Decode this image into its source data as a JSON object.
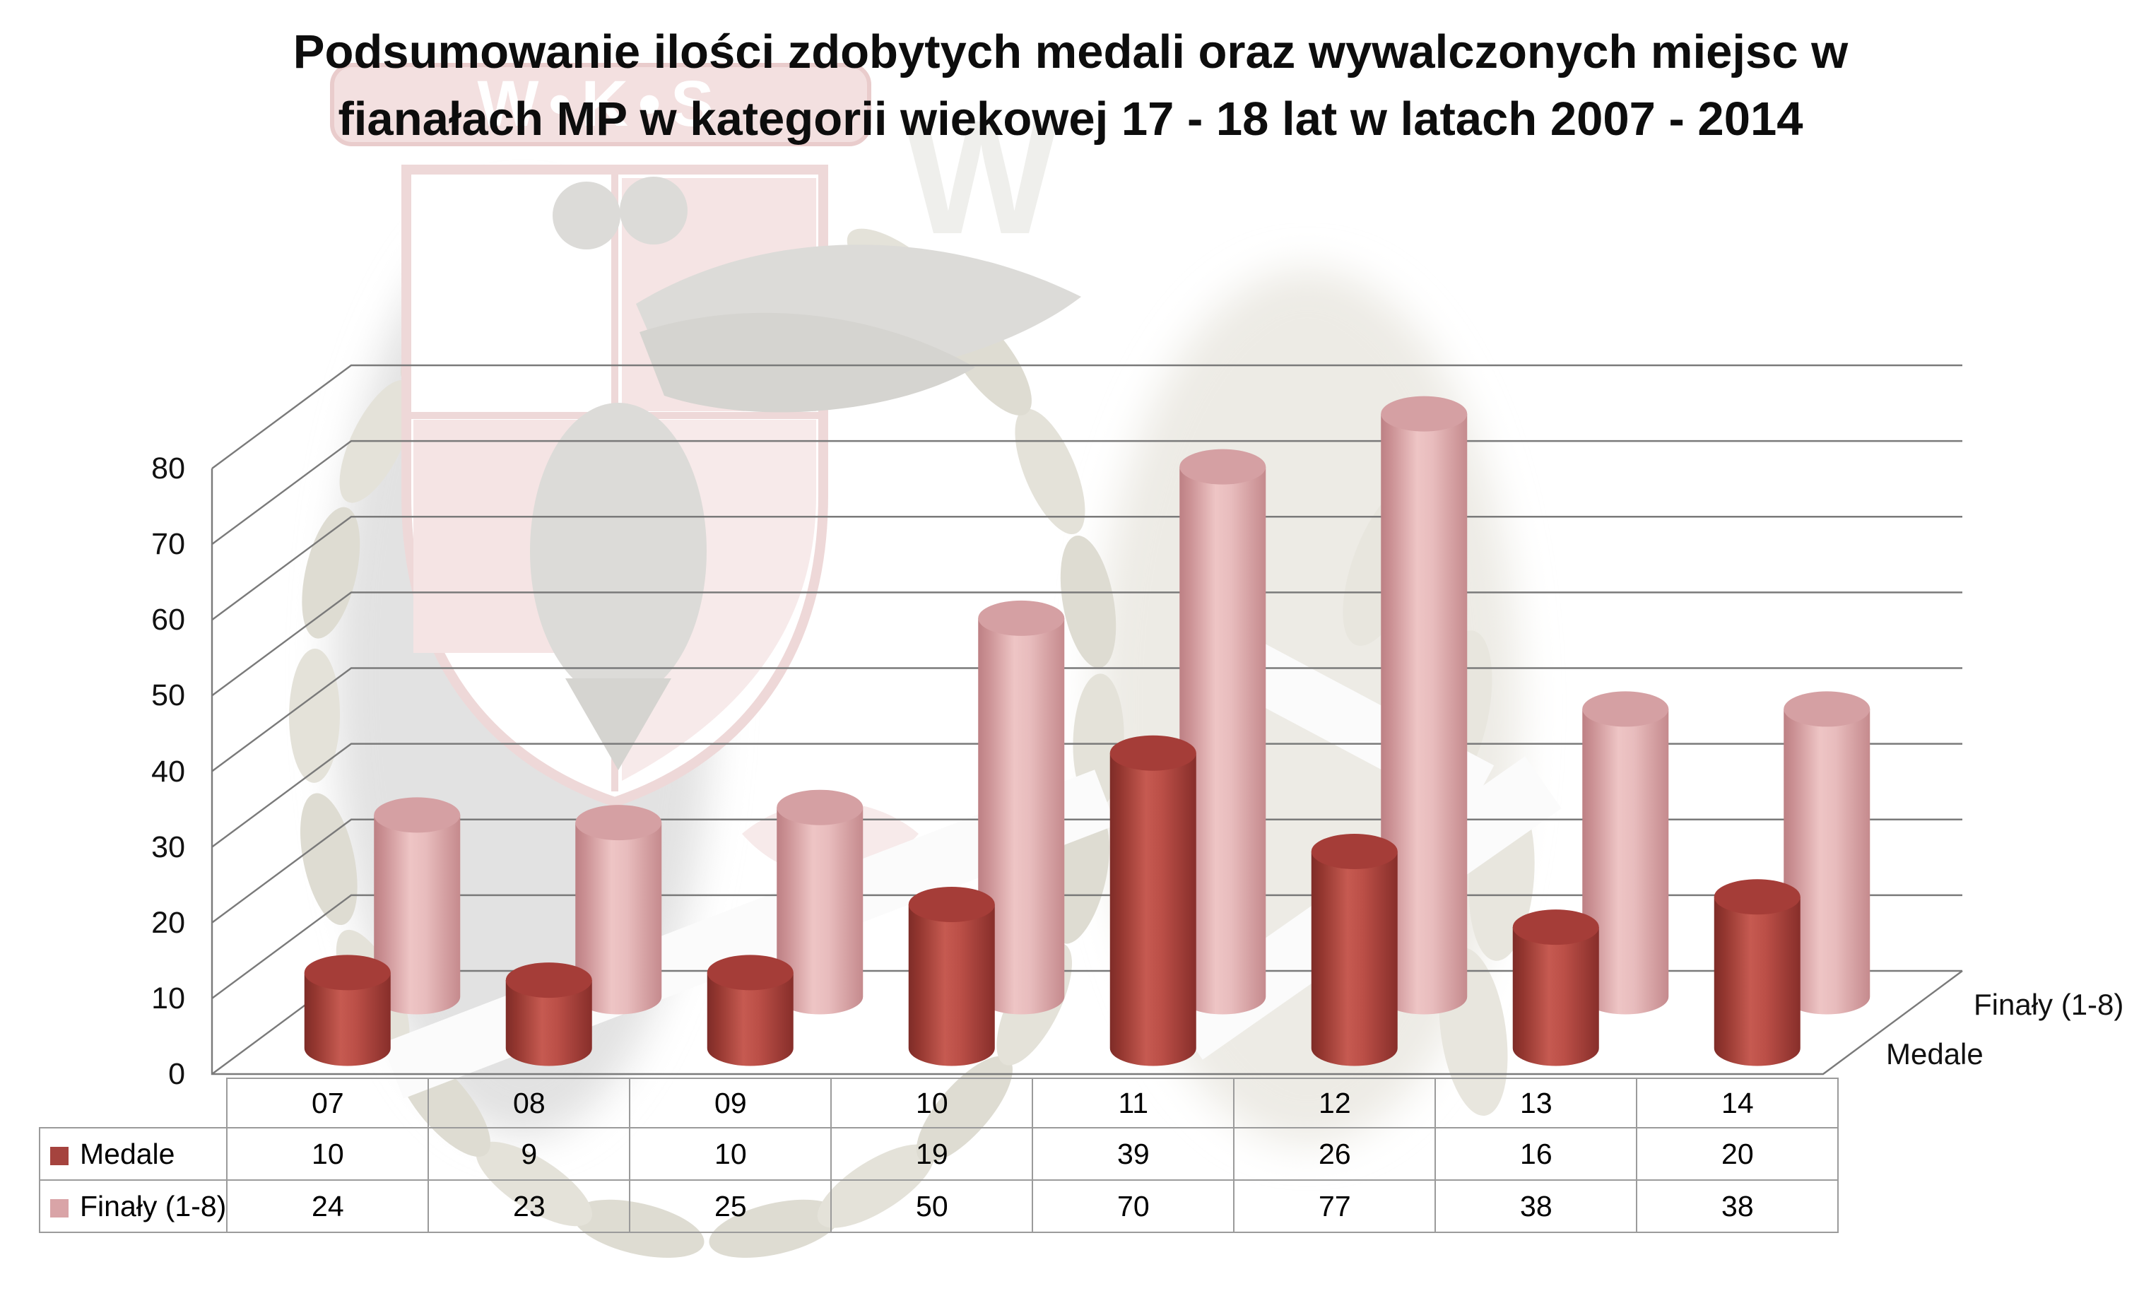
{
  "title": {
    "line1": "Podsumowanie ilości zdobytych medali oraz wywalczonych miejsc w",
    "line2": "fianałach MP w kategorii wiekowej 17 - 18 lat w latach 2007 - 2014"
  },
  "watermark": {
    "club_initials": "W•K•S"
  },
  "chart_data": {
    "type": "bar",
    "subtype": "3d-cylinder",
    "title": "Podsumowanie ilości zdobytych medali oraz wywalczonych miejsc w fianałach MP w kategorii wiekowej 17 - 18 lat w latach 2007 - 2014",
    "categories": [
      "07",
      "08",
      "09",
      "10",
      "11",
      "12",
      "13",
      "14"
    ],
    "series": [
      {
        "name": "Medale",
        "row": "front",
        "color": "#a5433e",
        "values": [
          10,
          9,
          10,
          19,
          39,
          26,
          16,
          20
        ]
      },
      {
        "name": "Finały (1-8)",
        "row": "back",
        "color": "#d9a4a7",
        "values": [
          24,
          23,
          25,
          50,
          70,
          77,
          38,
          38
        ]
      }
    ],
    "ylim": [
      0,
      80
    ],
    "yticks": [
      0,
      10,
      20,
      30,
      40,
      50,
      60,
      70,
      80
    ],
    "grid": true,
    "legend_position": "data-table-left",
    "depth_axis_labels_top_to_bottom": [
      "Finały (1-8)",
      "Medale"
    ]
  },
  "colors": {
    "gridline": "#7a7a7a",
    "table_border": "#9b9b9b",
    "text": "#000000",
    "background": "#ffffff",
    "medale_body_edge": "#7e2c28",
    "medale_body_mid": "#c65a51",
    "medale_top": "#a53d38",
    "finaly_body_edge": "#bd8084",
    "finaly_body_mid": "#eec5c5",
    "finaly_top": "#d5a0a3",
    "watermark_red": "#f3e3e3",
    "watermark_leaf": "#e4e2d9",
    "watermark_gray": "#dcdbd8"
  }
}
